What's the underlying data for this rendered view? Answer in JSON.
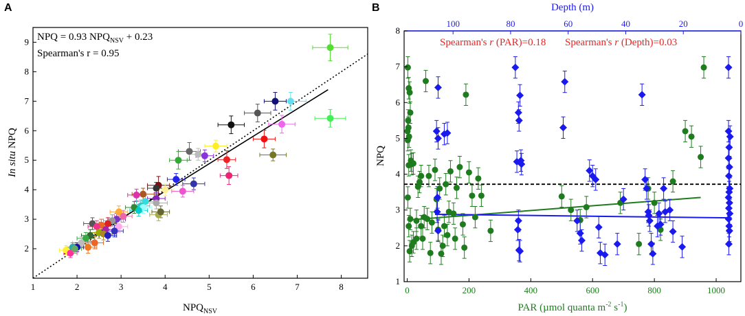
{
  "chart_data": [
    {
      "panel": "A",
      "type": "scatter",
      "xlabel": "NPQ",
      "xlabel_sub": "NSV",
      "ylabel_italic": "In situ",
      "ylabel_rest": " NPQ",
      "xlim": [
        1,
        8.6
      ],
      "ylim": [
        1,
        9.5
      ],
      "xticks": [
        1,
        2,
        3,
        4,
        5,
        6,
        7,
        8
      ],
      "yticks": [
        2,
        3,
        4,
        5,
        6,
        7,
        8,
        9
      ],
      "equation": {
        "a": "NPQ = 0.93 NPQ",
        "sub": "NSV",
        "b": " + 0.23"
      },
      "stat": "Spearman's r = 0.95",
      "regression": {
        "slope": 0.93,
        "intercept": 0.23,
        "x_range": [
          1.7,
          7.7
        ],
        "style": "solid"
      },
      "identity_line": {
        "x_range": [
          1,
          8.6
        ],
        "style": "dotted"
      },
      "points": [
        {
          "x": 7.75,
          "y": 8.82,
          "ex": 0.4,
          "ey": 0.45,
          "color": "#55dd33"
        },
        {
          "x": 7.75,
          "y": 6.42,
          "ex": 0.35,
          "ey": 0.3,
          "color": "#44ee55"
        },
        {
          "x": 6.85,
          "y": 7.0,
          "ex": 0.35,
          "ey": 0.3,
          "color": "#66ddee"
        },
        {
          "x": 6.5,
          "y": 7.0,
          "ex": 0.25,
          "ey": 0.3,
          "color": "#111177"
        },
        {
          "x": 6.1,
          "y": 6.6,
          "ex": 0.3,
          "ey": 0.3,
          "color": "#555555"
        },
        {
          "x": 6.65,
          "y": 6.22,
          "ex": 0.3,
          "ey": 0.3,
          "color": "#ee66ee"
        },
        {
          "x": 5.5,
          "y": 6.2,
          "ex": 0.3,
          "ey": 0.3,
          "color": "#111111"
        },
        {
          "x": 6.25,
          "y": 5.72,
          "ex": 0.25,
          "ey": 0.3,
          "color": "#ee1111"
        },
        {
          "x": 6.45,
          "y": 5.18,
          "ex": 0.3,
          "ey": 0.2,
          "color": "#777722"
        },
        {
          "x": 5.15,
          "y": 5.48,
          "ex": 0.25,
          "ey": 0.2,
          "color": "#ffee22"
        },
        {
          "x": 4.55,
          "y": 5.3,
          "ex": 0.25,
          "ey": 0.3,
          "color": "#666666"
        },
        {
          "x": 4.75,
          "y": 5.2,
          "ex": 0.2,
          "ey": 0.2,
          "color": "#bbbbbb"
        },
        {
          "x": 4.9,
          "y": 5.15,
          "ex": 0.2,
          "ey": 0.2,
          "color": "#8833dd"
        },
        {
          "x": 5.4,
          "y": 5.02,
          "ex": 0.2,
          "ey": 0.3,
          "color": "#ee2222"
        },
        {
          "x": 4.3,
          "y": 5.0,
          "ex": 0.2,
          "ey": 0.3,
          "color": "#33aa33"
        },
        {
          "x": 5.45,
          "y": 4.48,
          "ex": 0.2,
          "ey": 0.3,
          "color": "#ee2277"
        },
        {
          "x": 4.25,
          "y": 4.35,
          "ex": 0.2,
          "ey": 0.2,
          "color": "#2222ee"
        },
        {
          "x": 4.65,
          "y": 4.2,
          "ex": 0.25,
          "ey": 0.2,
          "color": "#3333aa"
        },
        {
          "x": 3.85,
          "y": 4.15,
          "ex": 0.25,
          "ey": 0.3,
          "color": "#771111"
        },
        {
          "x": 3.8,
          "y": 4.05,
          "ex": 0.2,
          "ey": 0.2,
          "color": "#333333"
        },
        {
          "x": 4.0,
          "y": 4.0,
          "ex": 0.2,
          "ey": 0.2,
          "color": "#ffee99"
        },
        {
          "x": 4.4,
          "y": 3.95,
          "ex": 0.25,
          "ey": 0.2,
          "color": "#ee55cc"
        },
        {
          "x": 3.35,
          "y": 3.82,
          "ex": 0.2,
          "ey": 0.2,
          "color": "#dd33aa"
        },
        {
          "x": 3.5,
          "y": 3.85,
          "ex": 0.25,
          "ey": 0.2,
          "color": "#aa5522"
        },
        {
          "x": 3.8,
          "y": 3.7,
          "ex": 0.2,
          "ey": 0.2,
          "color": "#8822bb"
        },
        {
          "x": 3.55,
          "y": 3.6,
          "ex": 0.2,
          "ey": 0.2,
          "color": "#33dddd"
        },
        {
          "x": 3.8,
          "y": 3.55,
          "ex": 0.25,
          "ey": 0.2,
          "color": "#aaaaaa"
        },
        {
          "x": 3.45,
          "y": 3.45,
          "ex": 0.2,
          "ey": 0.2,
          "color": "#22cccc"
        },
        {
          "x": 3.5,
          "y": 3.4,
          "ex": 0.2,
          "ey": 0.2,
          "color": "#99ffff"
        },
        {
          "x": 3.3,
          "y": 3.4,
          "ex": 0.2,
          "ey": 0.2,
          "color": "#338833"
        },
        {
          "x": 3.4,
          "y": 3.3,
          "ex": 0.2,
          "ey": 0.2,
          "color": "#00cccc"
        },
        {
          "x": 3.85,
          "y": 3.15,
          "ex": 0.2,
          "ey": 0.2,
          "color": "#aaaa55"
        },
        {
          "x": 3.9,
          "y": 3.25,
          "ex": 0.2,
          "ey": 0.2,
          "color": "#666633"
        },
        {
          "x": 2.95,
          "y": 3.25,
          "ex": 0.2,
          "ey": 0.2,
          "color": "#ffaa33"
        },
        {
          "x": 3.05,
          "y": 3.1,
          "ex": 0.2,
          "ey": 0.2,
          "color": "#ee66aa"
        },
        {
          "x": 2.9,
          "y": 3.0,
          "ex": 0.2,
          "ey": 0.2,
          "color": "#7733cc"
        },
        {
          "x": 2.8,
          "y": 2.95,
          "ex": 0.2,
          "ey": 0.2,
          "color": "#999999"
        },
        {
          "x": 2.7,
          "y": 2.85,
          "ex": 0.2,
          "ey": 0.2,
          "color": "#dd2222"
        },
        {
          "x": 2.35,
          "y": 2.85,
          "ex": 0.2,
          "ey": 0.2,
          "color": "#555555"
        },
        {
          "x": 2.55,
          "y": 2.8,
          "ex": 0.2,
          "ey": 0.2,
          "color": "#ee6622"
        },
        {
          "x": 2.45,
          "y": 2.75,
          "ex": 0.2,
          "ey": 0.2,
          "color": "#ee3388"
        },
        {
          "x": 2.95,
          "y": 2.75,
          "ex": 0.2,
          "ey": 0.2,
          "color": "#ffaaee"
        },
        {
          "x": 2.65,
          "y": 2.65,
          "ex": 0.2,
          "ey": 0.2,
          "color": "#aa22aa"
        },
        {
          "x": 2.85,
          "y": 2.6,
          "ex": 0.2,
          "ey": 0.2,
          "color": "#3333bb"
        },
        {
          "x": 2.5,
          "y": 2.55,
          "ex": 0.2,
          "ey": 0.2,
          "color": "#99aa00"
        },
        {
          "x": 2.6,
          "y": 2.5,
          "ex": 0.2,
          "ey": 0.2,
          "color": "#aa8822"
        },
        {
          "x": 2.3,
          "y": 2.45,
          "ex": 0.2,
          "ey": 0.2,
          "color": "#336633"
        },
        {
          "x": 2.7,
          "y": 2.45,
          "ex": 0.2,
          "ey": 0.2,
          "color": "#2222bb"
        },
        {
          "x": 2.2,
          "y": 2.35,
          "ex": 0.2,
          "ey": 0.2,
          "color": "#33aa44"
        },
        {
          "x": 2.1,
          "y": 2.2,
          "ex": 0.2,
          "ey": 0.2,
          "color": "#bbbbbb"
        },
        {
          "x": 2.4,
          "y": 2.2,
          "ex": 0.2,
          "ey": 0.2,
          "color": "#ee6622"
        },
        {
          "x": 2.25,
          "y": 2.05,
          "ex": 0.2,
          "ey": 0.2,
          "color": "#ee7722"
        },
        {
          "x": 2.0,
          "y": 2.05,
          "ex": 0.15,
          "ey": 0.15,
          "color": "#1111aa"
        },
        {
          "x": 1.9,
          "y": 2.05,
          "ex": 0.15,
          "ey": 0.15,
          "color": "#22aaaa"
        },
        {
          "x": 1.75,
          "y": 1.95,
          "ex": 0.15,
          "ey": 0.15,
          "color": "#ffee33"
        },
        {
          "x": 1.85,
          "y": 1.85,
          "ex": 0.15,
          "ey": 0.15,
          "color": "#ff3399"
        },
        {
          "x": 1.95,
          "y": 2.0,
          "ex": 0.15,
          "ey": 0.15,
          "color": "#66aa66"
        }
      ]
    },
    {
      "panel": "B",
      "type": "scatter",
      "xlabel": "PAR (µmol quanta m",
      "xlabel_sup1": "-2",
      "xlabel_mid": " s",
      "xlabel_sup2": "-1",
      "xlabel_end": ")",
      "top_xlabel": "Depth (m)",
      "ylabel": "NPQ",
      "xlim": [
        -10,
        1080
      ],
      "ylim": [
        1,
        8
      ],
      "xticks": [
        0,
        200,
        400,
        600,
        800,
        1000
      ],
      "yticks": [
        1,
        2,
        3,
        4,
        5,
        6,
        7,
        8
      ],
      "top_xlim": [
        117,
        0
      ],
      "top_xticks": [
        100,
        80,
        60,
        40,
        20,
        0
      ],
      "stat_par": "Spearman's r (PAR)=0.18",
      "stat_depth": "Spearman's r (Depth)=0.03",
      "stat_color": "#ee2222",
      "threshold": {
        "y": 3.72,
        "style": "dashed",
        "color": "#000000"
      },
      "series": [
        {
          "name": "PAR",
          "marker": "circle",
          "color": "#1e7b1e",
          "axis": "bottom",
          "regression": {
            "x": [
              0,
              950
            ],
            "y": [
              2.72,
              3.35
            ]
          },
          "points": [
            [
              2,
              6.98
            ],
            [
              5,
              6.4
            ],
            [
              3,
              5.5
            ],
            [
              4,
              5.3
            ],
            [
              1,
              5.2
            ],
            [
              6,
              5.05
            ],
            [
              2,
              4.95
            ],
            [
              10,
              5.72
            ],
            [
              8,
              6.28
            ],
            [
              12,
              4.38
            ],
            [
              15,
              4.28
            ],
            [
              20,
              4.3
            ],
            [
              5,
              4.25
            ],
            [
              2,
              3.35
            ],
            [
              10,
              2.75
            ],
            [
              5,
              2.55
            ],
            [
              8,
              1.85
            ],
            [
              15,
              2.0
            ],
            [
              20,
              2.1
            ],
            [
              30,
              2.2
            ],
            [
              35,
              3.65
            ],
            [
              40,
              3.78
            ],
            [
              45,
              3.95
            ],
            [
              30,
              2.7
            ],
            [
              45,
              2.55
            ],
            [
              50,
              2.2
            ],
            [
              55,
              2.8
            ],
            [
              60,
              6.6
            ],
            [
              65,
              2.75
            ],
            [
              70,
              3.95
            ],
            [
              75,
              1.8
            ],
            [
              80,
              2.65
            ],
            [
              90,
              4.12
            ],
            [
              95,
              3.3
            ],
            [
              100,
              2.45
            ],
            [
              105,
              3.6
            ],
            [
              110,
              1.78
            ],
            [
              115,
              2.0
            ],
            [
              120,
              2.55
            ],
            [
              125,
              3.72
            ],
            [
              130,
              2.3
            ],
            [
              135,
              2.95
            ],
            [
              140,
              4.08
            ],
            [
              150,
              2.9
            ],
            [
              155,
              2.2
            ],
            [
              160,
              3.62
            ],
            [
              170,
              4.2
            ],
            [
              180,
              2.6
            ],
            [
              185,
              1.95
            ],
            [
              190,
              6.22
            ],
            [
              200,
              4.05
            ],
            [
              210,
              3.4
            ],
            [
              220,
              2.8
            ],
            [
              230,
              3.88
            ],
            [
              240,
              3.4
            ],
            [
              270,
              2.42
            ],
            [
              500,
              3.38
            ],
            [
              530,
              3.0
            ],
            [
              560,
              2.72
            ],
            [
              580,
              3.08
            ],
            [
              690,
              3.2
            ],
            [
              750,
              2.05
            ],
            [
              780,
              3.6
            ],
            [
              800,
              3.2
            ],
            [
              820,
              2.45
            ],
            [
              860,
              3.8
            ],
            [
              900,
              5.2
            ],
            [
              920,
              5.05
            ],
            [
              950,
              4.48
            ],
            [
              960,
              6.98
            ]
          ],
          "err": 0.3
        },
        {
          "name": "Depth",
          "marker": "diamond",
          "color": "#1a1aee",
          "axis": "top",
          "regression": {
            "x": [
              90,
              1050
            ],
            "y": [
              2.88,
              2.78
            ]
          },
          "points": [
            [
              350,
              6.98
            ],
            [
              365,
              6.2
            ],
            [
              360,
              5.72
            ],
            [
              362,
              5.5
            ],
            [
              368,
              4.38
            ],
            [
              370,
              4.28
            ],
            [
              355,
              4.35
            ],
            [
              360,
              2.7
            ],
            [
              358,
              2.45
            ],
            [
              362,
              1.88
            ],
            [
              365,
              1.85
            ],
            [
              100,
              6.42
            ],
            [
              95,
              5.2
            ],
            [
              100,
              5.0
            ],
            [
              98,
              3.35
            ],
            [
              97,
              2.95
            ],
            [
              100,
              2.42
            ],
            [
              130,
              5.15
            ],
            [
              120,
              5.12
            ],
            [
              510,
              6.58
            ],
            [
              505,
              5.3
            ],
            [
              550,
              2.7
            ],
            [
              560,
              2.35
            ],
            [
              565,
              2.15
            ],
            [
              590,
              4.1
            ],
            [
              600,
              3.95
            ],
            [
              610,
              3.85
            ],
            [
              620,
              2.52
            ],
            [
              625,
              1.8
            ],
            [
              640,
              1.75
            ],
            [
              680,
              2.05
            ],
            [
              700,
              3.3
            ],
            [
              760,
              6.22
            ],
            [
              770,
              3.85
            ],
            [
              775,
              3.6
            ],
            [
              780,
              2.95
            ],
            [
              782,
              2.85
            ],
            [
              785,
              2.7
            ],
            [
              790,
              2.05
            ],
            [
              795,
              1.78
            ],
            [
              810,
              2.55
            ],
            [
              815,
              2.9
            ],
            [
              820,
              2.6
            ],
            [
              830,
              3.6
            ],
            [
              835,
              2.95
            ],
            [
              850,
              3.0
            ],
            [
              860,
              2.4
            ],
            [
              890,
              1.97
            ],
            [
              1040,
              6.98
            ],
            [
              1040,
              5.2
            ],
            [
              1045,
              5.05
            ],
            [
              1042,
              4.75
            ],
            [
              1040,
              4.45
            ],
            [
              1043,
              4.2
            ],
            [
              1041,
              3.95
            ],
            [
              1044,
              3.6
            ],
            [
              1042,
              3.5
            ],
            [
              1040,
              3.35
            ],
            [
              1043,
              3.2
            ],
            [
              1041,
              3.05
            ],
            [
              1044,
              2.9
            ],
            [
              1040,
              2.75
            ],
            [
              1042,
              2.55
            ],
            [
              1043,
              2.42
            ],
            [
              1041,
              2.05
            ]
          ],
          "err": 0.3
        }
      ]
    }
  ]
}
